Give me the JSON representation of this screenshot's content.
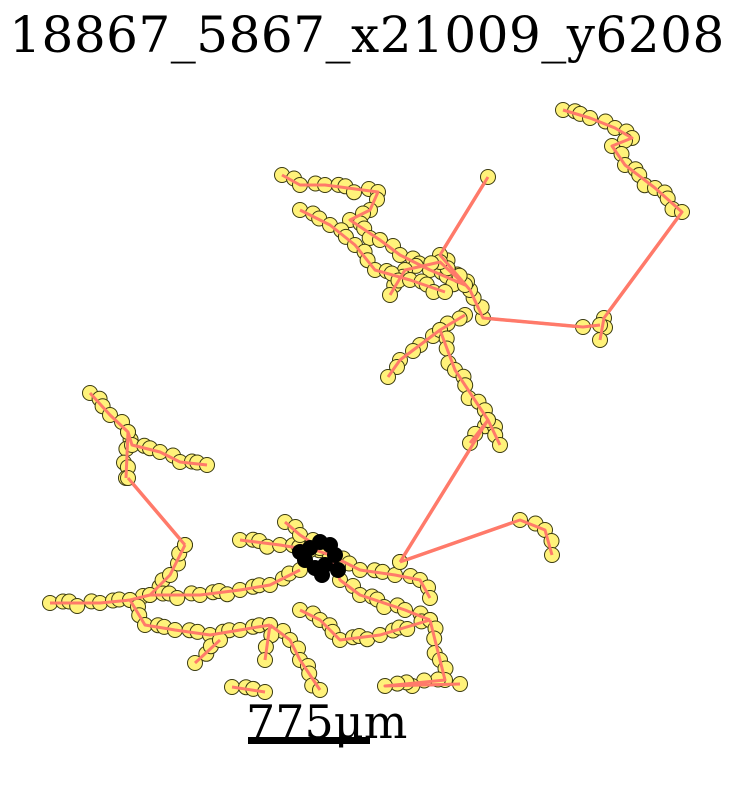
{
  "title": "18867_5867_x21009_y6208",
  "scale_label": "775μm",
  "colors": {
    "node_fill": "#fff27a",
    "node_stroke": "#3a3a10",
    "edge": "#ff7a6a",
    "soma": "#000000",
    "background": "#ffffff"
  }
}
